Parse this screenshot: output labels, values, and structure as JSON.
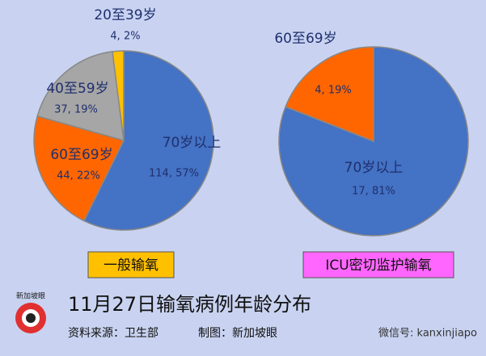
{
  "title": "11月27日输氧病例年龄分布",
  "source": "资料来源：卫生部",
  "credit": "制图：新加坡眼",
  "logo": "新加坡眼",
  "watermark": "微信号: kanxinjiapo",
  "chart_data": [
    {
      "type": "pie",
      "title": "一般输氧",
      "categories": [
        "70岁以上",
        "60至69岁",
        "40至59岁",
        "20至39岁"
      ],
      "values": [
        114,
        44,
        37,
        4
      ],
      "value_labels": [
        "114, 57%",
        "44, 22%",
        "37, 19%",
        "4, 2%"
      ],
      "colors": [
        "#4472c4",
        "#ff6600",
        "#a6a6a6",
        "#ffc000"
      ],
      "title_color": "#ffc000"
    },
    {
      "type": "pie",
      "title": "ICU密切监护输氧",
      "categories": [
        "70岁以上",
        "60至69岁"
      ],
      "values": [
        17,
        4
      ],
      "value_labels": [
        "17, 81%",
        "4, 19%"
      ],
      "colors": [
        "#4472c4",
        "#ff6600"
      ],
      "title_color": "#ff66ff"
    }
  ]
}
